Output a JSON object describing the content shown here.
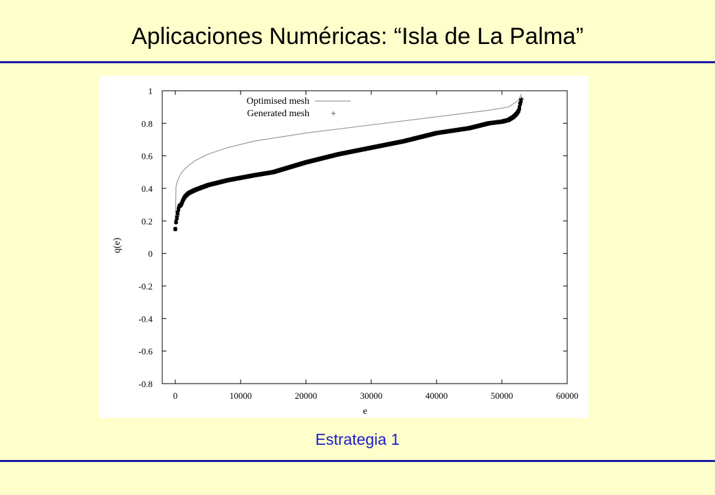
{
  "title": "Aplicaciones Numéricas: “Isla de La Palma”",
  "caption": "Estrategia 1",
  "colors": {
    "background": "#ffffcc",
    "rule": "#1c1ca6",
    "caption": "#1c1cc8"
  },
  "chart_data": {
    "type": "scatter",
    "xlabel": "e",
    "ylabel": "q(e)",
    "xlim": [
      -2000,
      60000
    ],
    "ylim": [
      -0.8,
      1
    ],
    "x_ticks": [
      "0",
      "10000",
      "20000",
      "30000",
      "40000",
      "50000",
      "60000"
    ],
    "y_ticks": [
      "1",
      "0.8",
      "0.6",
      "0.4",
      "0.2",
      "0",
      "-0.2",
      "-0.4",
      "-0.6",
      "-0.8"
    ],
    "grid": false,
    "legend_position": "top-left",
    "series": [
      {
        "name": "Optimised mesh",
        "style": "line",
        "color": "#999999",
        "x": [
          0,
          100,
          300,
          600,
          1000,
          2000,
          3000,
          5000,
          8000,
          12000,
          20000,
          30000,
          40000,
          48000,
          51000,
          52500,
          53000
        ],
        "y": [
          0.2,
          0.41,
          0.44,
          0.47,
          0.5,
          0.54,
          0.57,
          0.61,
          0.65,
          0.69,
          0.74,
          0.79,
          0.84,
          0.88,
          0.9,
          0.94,
          0.98
        ]
      },
      {
        "name": "Generated mesh",
        "style": "points",
        "color": "#000000",
        "x": [
          0,
          100,
          300,
          400,
          600,
          900,
          1000,
          1200,
          1500,
          2000,
          3000,
          5000,
          8000,
          12000,
          15000,
          20000,
          25000,
          30000,
          35000,
          40000,
          45000,
          48000,
          50000,
          51000,
          51800,
          52300,
          52600,
          52800,
          53000
        ],
        "y": [
          0.15,
          0.19,
          0.23,
          0.26,
          0.29,
          0.3,
          0.31,
          0.33,
          0.35,
          0.37,
          0.39,
          0.42,
          0.45,
          0.48,
          0.5,
          0.56,
          0.61,
          0.65,
          0.69,
          0.74,
          0.77,
          0.8,
          0.81,
          0.82,
          0.84,
          0.86,
          0.88,
          0.92,
          0.95
        ]
      }
    ]
  }
}
